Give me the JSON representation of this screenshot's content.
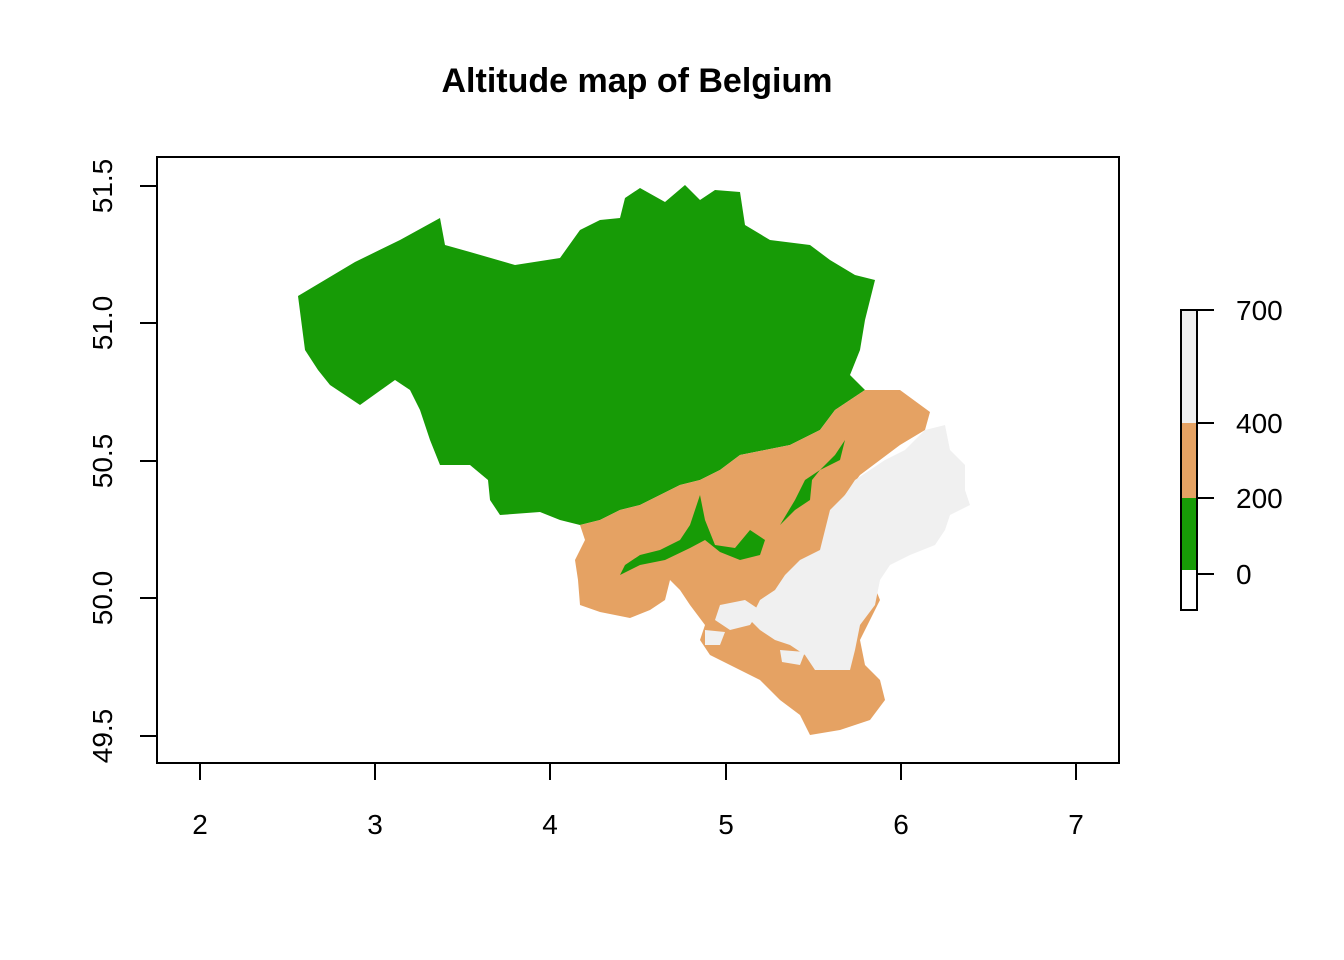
{
  "map": {
    "title": "Altitude map of Belgium",
    "x_ticks": [
      "2",
      "3",
      "4",
      "5",
      "6",
      "7"
    ],
    "y_ticks": [
      "49.5",
      "50.0",
      "50.5",
      "51.0",
      "51.5"
    ],
    "legend": {
      "tick_labels": [
        "0",
        "200",
        "400",
        "700"
      ],
      "bands": [
        {
          "from": -100,
          "to": 0,
          "color": "#ffffff"
        },
        {
          "from": 0,
          "to": 200,
          "color": "#179b06"
        },
        {
          "from": 200,
          "to": 400,
          "color": "#e5a263"
        },
        {
          "from": 400,
          "to": 700,
          "color": "#f0f0f0"
        }
      ]
    },
    "colors": {
      "low": "#179b06",
      "mid": "#e5a263",
      "high": "#f0f0f0"
    }
  }
}
